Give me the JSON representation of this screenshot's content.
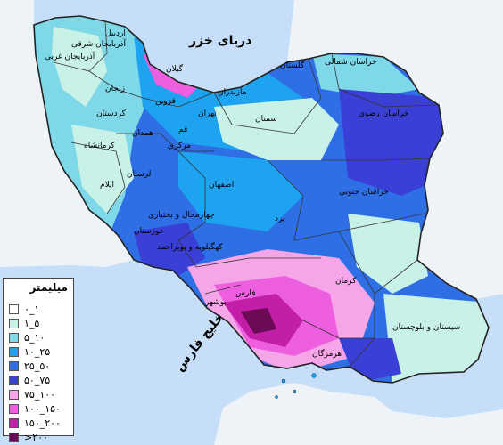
{
  "labels": {
    "sea": "دریای خزر",
    "gulf": "خلیج فارس",
    "ardabil": "اردبیل",
    "az_east": "آذربایجان شرقی",
    "az_west": "آذربایجان غربی",
    "zanjan": "زنجان",
    "gilan": "گیلان",
    "qazvin": "قزوین",
    "mazandaran": "مازندران",
    "golestan": "گلستان",
    "khorasan_north": "خراسان شمالی",
    "khorasan_razavi": "خراسان رضوی",
    "tehran": "تهران",
    "kurdistan": "کردستان",
    "semnan": "سمنان",
    "hamedan": "همدان",
    "qom": "قم",
    "markazi": "مرکزی",
    "kermanshah": "کرمانشاه",
    "lorestan": "لرستان",
    "ilam": "ایلام",
    "isfahan": "اصفهان",
    "khorasan_south": "خراسان جنوبی",
    "yazd": "یزد",
    "chaharmahal": "چهارمحال و بختیاری",
    "khuzestan": "خوزستان",
    "kohgiluyeh": "کهگیلویه و بویراحمد",
    "fars": "فارس",
    "kerman": "کرمان",
    "bushehr": "بوشهر",
    "sistan": "سیستان و بلوچستان",
    "hormozgan": "هرمزگان"
  },
  "legend": {
    "title": "میلیمتر",
    "items": [
      {
        "label": "۰_۱",
        "color": "#ffffff"
      },
      {
        "label": "۱_۵",
        "color": "#c8f2e8"
      },
      {
        "label": "۵_۱۰",
        "color": "#7fd8e8"
      },
      {
        "label": "۱۰_۲۵",
        "color": "#1ea3f0"
      },
      {
        "label": "۲۵_۵۰",
        "color": "#2f6fe6"
      },
      {
        "label": "۵۰_۷۵",
        "color": "#3a3fd6"
      },
      {
        "label": "۷۵_۱۰۰",
        "color": "#f6a6e8"
      },
      {
        "label": "۱۰۰_۱۵۰",
        "color": "#ee5fe0"
      },
      {
        "label": "۱۵۰_۲۰۰",
        "color": "#c21ea8"
      },
      {
        "label": ">۲۰۰",
        "color": "#6b0a55"
      }
    ]
  }
}
